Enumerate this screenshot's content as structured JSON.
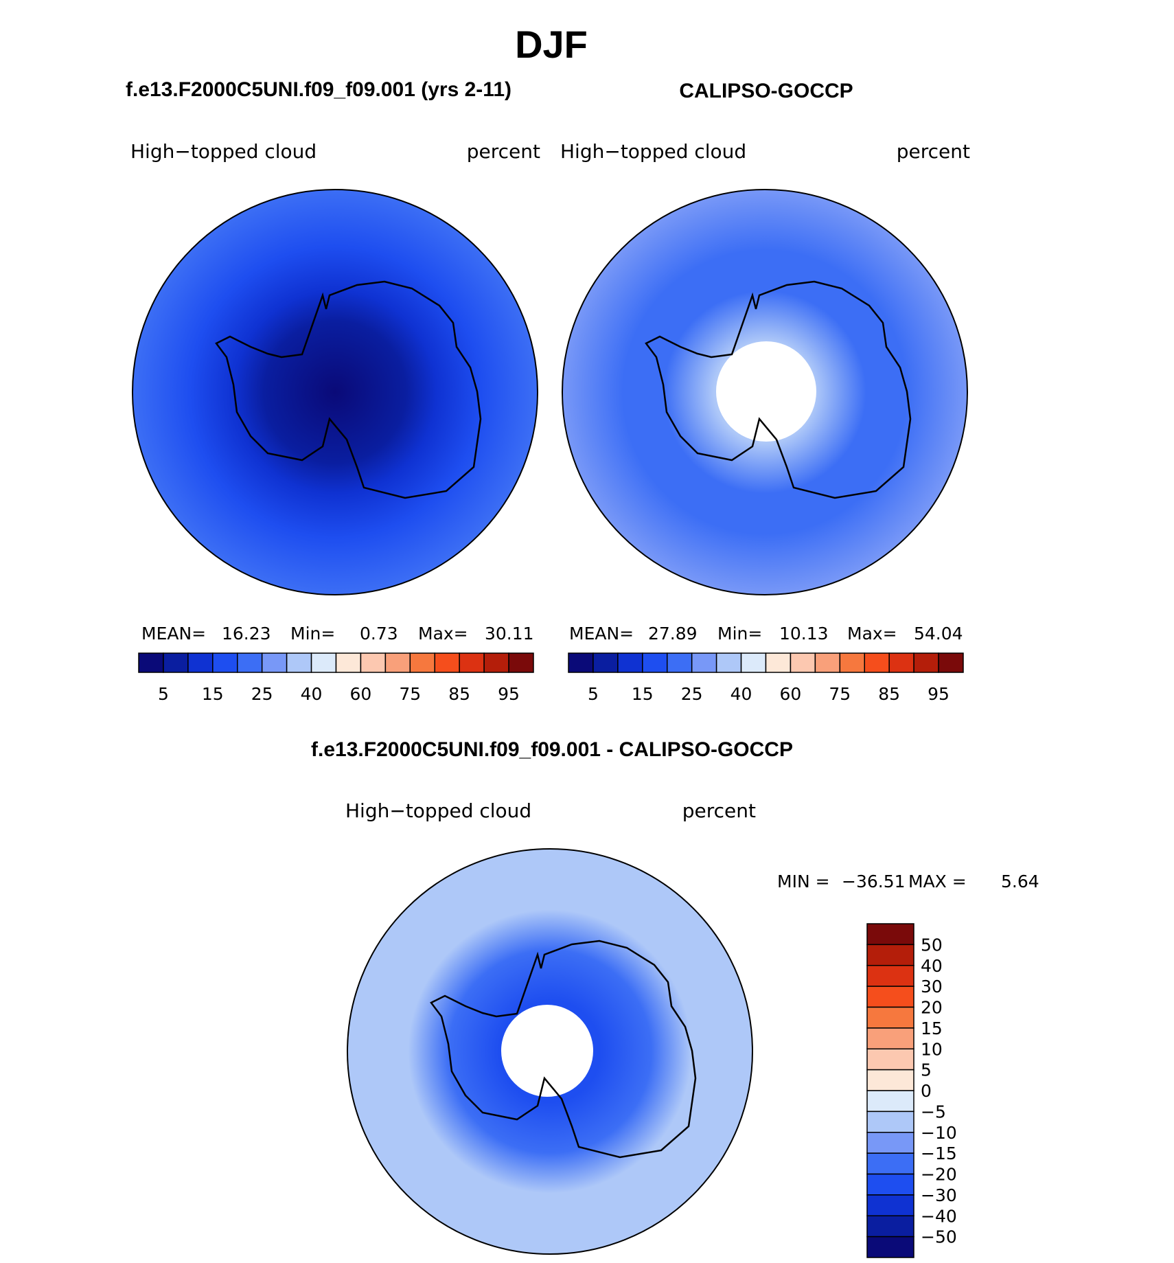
{
  "season_title": "DJF",
  "panels": {
    "model": {
      "header": "f.e13.F2000C5UNI.f09_f09.001 (yrs 2-11)",
      "field_label": "High−topped cloud",
      "units_label": "percent",
      "stats": {
        "mean_label": "MEAN=",
        "mean": "16.23",
        "min_label": "Min=",
        "min": "0.73",
        "max_label": "Max=",
        "max": "30.11"
      }
    },
    "obs": {
      "header": "CALIPSO-GOCCP",
      "field_label": "High−topped cloud",
      "units_label": "percent",
      "stats": {
        "mean_label": "MEAN=",
        "mean": "27.89",
        "min_label": "Min=",
        "min": "10.13",
        "max_label": "Max=",
        "max": "54.04"
      }
    },
    "diff": {
      "header": "f.e13.F2000C5UNI.f09_f09.001 - CALIPSO-GOCCP",
      "field_label": "High−topped cloud",
      "units_label": "percent",
      "stats": {
        "min_label": "MIN =",
        "min": "−36.51",
        "max_label": "MAX =",
        "max": "5.64"
      }
    }
  },
  "colorbar_abs": {
    "colors": [
      "#0a0a78",
      "#0a1ea0",
      "#0f32d2",
      "#1e4ef0",
      "#3c6ef5",
      "#7898f7",
      "#aec8f8",
      "#dceafa",
      "#fde8d8",
      "#fcc8b0",
      "#f9a07a",
      "#f6783e",
      "#f54e1c",
      "#dc3212",
      "#b41e0a",
      "#7a0a0a"
    ],
    "tick_labels": [
      "5",
      "15",
      "25",
      "40",
      "60",
      "75",
      "85",
      "95"
    ]
  },
  "colorbar_diff": {
    "colors": [
      "#7a0a0a",
      "#b41e0a",
      "#dc3212",
      "#f54e1c",
      "#f6783e",
      "#f9a07a",
      "#fcc8b0",
      "#fde8d8",
      "#dceafa",
      "#aec8f8",
      "#7898f7",
      "#3c6ef5",
      "#1e4ef0",
      "#0f32d2",
      "#0a1ea0",
      "#0a0a78"
    ],
    "tick_labels": [
      "50",
      "40",
      "30",
      "20",
      "15",
      "10",
      "5",
      "0",
      "−5",
      "−10",
      "−15",
      "−20",
      "−30",
      "−40",
      "−50"
    ]
  }
}
